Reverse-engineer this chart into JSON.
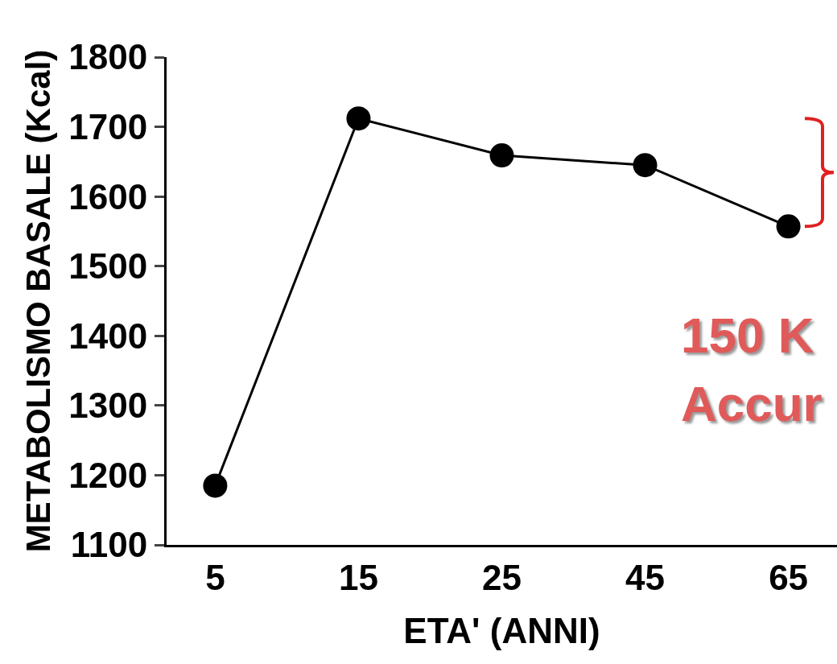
{
  "chart_data": {
    "type": "line",
    "xlabel": "ETA' (ANNI)",
    "ylabel": "METABOLISMO BASALE (Kcal)",
    "categories": [
      "5",
      "15",
      "25",
      "45",
      "65"
    ],
    "series": [
      {
        "color": "#000000",
        "values": [
          1185,
          1712,
          1659,
          1645,
          1557
        ]
      }
    ],
    "ylim": [
      1100,
      1800
    ],
    "yticks": [
      1100,
      1200,
      1300,
      1400,
      1500,
      1600,
      1700,
      1800
    ],
    "marker": "circle",
    "line_style": "solid",
    "grid": false,
    "annotations": [
      "150 K",
      "Accur"
    ]
  }
}
